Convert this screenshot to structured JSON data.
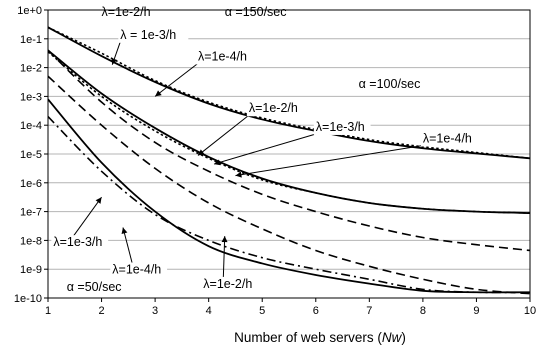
{
  "chart_data": {
    "type": "line",
    "title": "",
    "xlabel_prefix": "Number of web servers (",
    "xlabel_var": "Nw",
    "xlabel_suffix": ")",
    "ylabel": "",
    "y_scale": "log",
    "xlim": [
      1,
      10
    ],
    "ylim_exp": [
      -10,
      0
    ],
    "grid": "horizontal",
    "legend": "none",
    "x_ticks": [
      "1",
      "2",
      "3",
      "4",
      "5",
      "6",
      "7",
      "8",
      "9",
      "10"
    ],
    "y_ticks": [
      "1e-10",
      "1e-9",
      "1e-8",
      "1e-7",
      "1e-6",
      "1e-5",
      "1e-4",
      "1e-3",
      "1e-2",
      "1e-1",
      "1e+0"
    ],
    "x": [
      1,
      2,
      3,
      4,
      5,
      6,
      7,
      8,
      9,
      10
    ],
    "series": [
      {
        "style": "solid",
        "log10_y": [
          -0.6,
          -1.6,
          -2.5,
          -3.25,
          -3.8,
          -4.2,
          -4.55,
          -4.8,
          -4.98,
          -5.15
        ]
      },
      {
        "style": "dotted",
        "log10_y": [
          -0.6,
          -1.5,
          -2.45,
          -3.2,
          -3.75,
          -4.15,
          -4.5,
          -4.75,
          -4.95,
          -5.15
        ]
      },
      {
        "style": "solid",
        "log10_y": [
          -1.4,
          -2.9,
          -4.1,
          -5.1,
          -5.85,
          -6.35,
          -6.7,
          -6.9,
          -7.0,
          -7.05
        ]
      },
      {
        "style": "dotted",
        "log10_y": [
          -1.45,
          -3.0,
          -4.2,
          -5.15,
          -5.9,
          -6.35,
          -6.7,
          -6.9,
          -7.0,
          -7.05
        ]
      },
      {
        "style": "dashed",
        "log10_y": [
          -1.4,
          -3.2,
          -4.6,
          -5.6,
          -6.4,
          -7.0,
          -7.5,
          -7.9,
          -8.15,
          -8.35
        ]
      },
      {
        "style": "dashed",
        "log10_y": [
          -2.3,
          -4.0,
          -5.5,
          -6.7,
          -7.6,
          -8.35,
          -8.9,
          -9.35,
          -9.7,
          -9.85
        ]
      },
      {
        "style": "dashdot",
        "log10_y": [
          -3.7,
          -5.6,
          -7.1,
          -8.0,
          -8.6,
          -9.0,
          -9.35,
          -9.7,
          -9.8,
          -9.8
        ]
      },
      {
        "style": "solid",
        "log10_y": [
          -3.1,
          -5.3,
          -7.0,
          -8.2,
          -8.8,
          -9.2,
          -9.5,
          -9.75,
          -9.8,
          -9.8
        ]
      }
    ],
    "annotations": [
      {
        "text": "λ=1e-2/h",
        "at": [
          2.0,
          -0.2
        ],
        "arrow_to": null
      },
      {
        "text": "α =150/sec",
        "at": [
          4.3,
          -0.2
        ],
        "arrow_to": null
      },
      {
        "text": "λ = 1e-3/h",
        "at": [
          2.35,
          -1.0
        ],
        "arrow_to": [
          2.2,
          -1.9
        ]
      },
      {
        "text": "λ=1e-4/h",
        "at": [
          3.8,
          -1.75
        ],
        "arrow_to": [
          3.0,
          -3.0
        ]
      },
      {
        "text": "α =100/sec",
        "at": [
          6.8,
          -2.7
        ],
        "arrow_to": null
      },
      {
        "text": "λ=1e-2/h",
        "at": [
          4.75,
          -3.55
        ],
        "arrow_to": [
          3.8,
          -5.05
        ]
      },
      {
        "text": "λ=1e-3/h",
        "at": [
          6.0,
          -4.2
        ],
        "arrow_to": [
          4.1,
          -5.35
        ]
      },
      {
        "text": "λ=1e-4/h",
        "at": [
          8.0,
          -4.6
        ],
        "arrow_to": [
          4.5,
          -5.75
        ]
      },
      {
        "text": "λ=1e-3/h",
        "at": [
          1.1,
          -8.2
        ],
        "arrow_to": [
          2.0,
          -6.5
        ]
      },
      {
        "text": "λ=1e-4/h",
        "at": [
          2.2,
          -9.15
        ],
        "arrow_to": [
          2.4,
          -7.55
        ]
      },
      {
        "text": "α =50/sec",
        "at": [
          1.35,
          -9.75
        ],
        "arrow_to": null
      },
      {
        "text": "λ=1e-2/h",
        "at": [
          3.9,
          -9.65
        ],
        "arrow_to": [
          4.3,
          -7.85
        ]
      }
    ]
  }
}
